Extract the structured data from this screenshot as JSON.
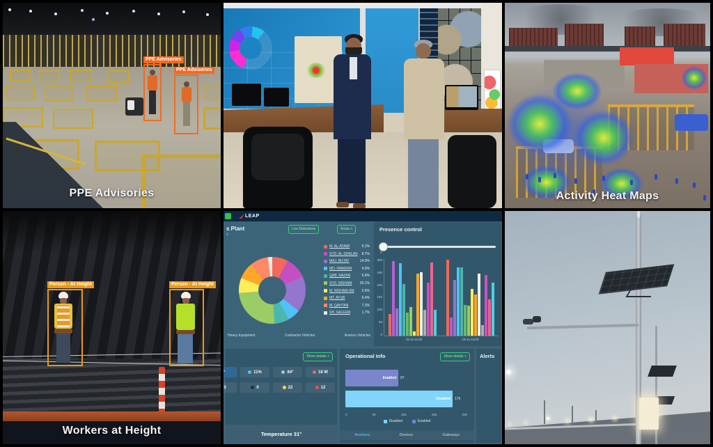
{
  "panels": {
    "ppe": {
      "caption": "PPE Advisories",
      "boxes": [
        {
          "label": "PPE Advisories"
        },
        {
          "label": "PPE Advisories"
        }
      ]
    },
    "heatmap": {
      "caption": "Activity Heat Maps"
    },
    "height": {
      "caption": "Workers at Height",
      "boxes": [
        {
          "label": "Person - At Height"
        },
        {
          "label": "Person - At Height"
        }
      ]
    }
  },
  "dashboard": {
    "brand": "LEAP",
    "title": "s Plant",
    "subtitle": "s",
    "buttons": {
      "live": "Live Detections",
      "areas": "Areas  +"
    },
    "vehicle_tabs": [
      "Heavy Equipment",
      "Contractor Vehicles",
      "Aramco Vehicles"
    ],
    "presence": {
      "title": "Presence control",
      "slider_value": "0"
    },
    "weather": {
      "show_details": "Show details  +",
      "temperature": "Temperature 31°",
      "tiles": [
        [
          {
            "icon": "thermometer-icon",
            "color": "",
            "value": "31°",
            "hl": true
          },
          {
            "icon": "droplet-icon",
            "color": "#4fc3f7",
            "value": "11%"
          },
          {
            "icon": "temp-icon",
            "color": "#81d4fa",
            "value": "84°"
          },
          {
            "icon": "wind-icon",
            "color": "#ef6a5a",
            "value": "18 W"
          }
        ],
        [
          {
            "icon": "cloud-icon",
            "color": "#37474f",
            "value": "3"
          },
          {
            "icon": "moon-icon",
            "color": "#263238",
            "value": "0"
          },
          {
            "icon": "sun-icon",
            "color": "#ffd54f",
            "value": "22"
          },
          {
            "icon": "alert-icon",
            "color": "#ef5350",
            "value": "12"
          }
        ]
      ]
    },
    "operational": {
      "title": "Operational Info",
      "show_details": "Show details  +",
      "tabs": [
        "Anchors",
        "Devices",
        "Gateways"
      ],
      "active_tab": "Anchors"
    },
    "alerts_title": "Alerts"
  },
  "chart_data": [
    {
      "id": "worker-donut",
      "type": "pie",
      "donut": true,
      "legend_position": "right",
      "labels": [
        "M. AL-ATAWI",
        "SYD. AL-SHALAN",
        "MAJ. BILTAT",
        "MD. HAMDAN",
        "QAB. NAZAR",
        "SYD. NISHAM",
        "M. NISHAM-SM",
        "MT. AYUB",
        "M. QAHTAN",
        "SH. SALEEM"
      ],
      "values": [
        6.1,
        8.7,
        14.0,
        4.9,
        5.9,
        20.1,
        5.9,
        6.4,
        7.3,
        1.7
      ],
      "display": [
        "6.1%",
        "8.7%",
        "14.0%",
        "4.9%",
        "5.9%",
        "20.1%",
        "5.9%",
        "6.4%",
        "7.3%",
        "1.7%"
      ],
      "colors": [
        "#ef6a5a",
        "#c44fc0",
        "#9575cd",
        "#4fc3f7",
        "#4db6ac",
        "#9ccc65",
        "#ffee58",
        "#ffa726",
        "#ff8a65",
        "#e8e8e8"
      ]
    },
    {
      "id": "presence-bars",
      "type": "bar",
      "title": "Presence control",
      "categories": [
        "19-12 11:00",
        "19-12 13:00"
      ],
      "ylim": [
        0,
        300
      ],
      "yticks": [
        300,
        250,
        200,
        150,
        100,
        50,
        0
      ],
      "bar_colors": [
        "#ef6a5a",
        "#b65fd0",
        "#9575cd",
        "#4fc3f7",
        "#4db6ac",
        "#66bb6a",
        "#9ccc65",
        "#ffee58",
        "#ffa726",
        "#eceff1",
        "#bcaaa4",
        "#d04fc4",
        "#f06292",
        "#4dd0e1"
      ],
      "groups": [
        [
          85,
          290,
          105,
          280,
          200,
          90,
          110,
          15,
          240,
          245,
          100,
          205,
          285,
          100
        ],
        [
          295,
          70,
          215,
          265,
          265,
          120,
          115,
          180,
          160,
          240,
          40,
          235,
          140,
          205
        ]
      ]
    },
    {
      "id": "operational-bars",
      "type": "bar",
      "orientation": "horizontal",
      "categories": [
        "Enabled",
        "Disabled"
      ],
      "values": [
        87,
        176
      ],
      "colors": [
        "#7986cb",
        "#81d4fa"
      ],
      "xlim": [
        0,
        200
      ],
      "xticks": [
        0,
        50,
        100,
        150,
        200
      ],
      "legend": [
        {
          "label": "Disabled",
          "color": "#81d4fa"
        },
        {
          "label": "Enabled",
          "color": "#7986cb"
        }
      ]
    }
  ]
}
